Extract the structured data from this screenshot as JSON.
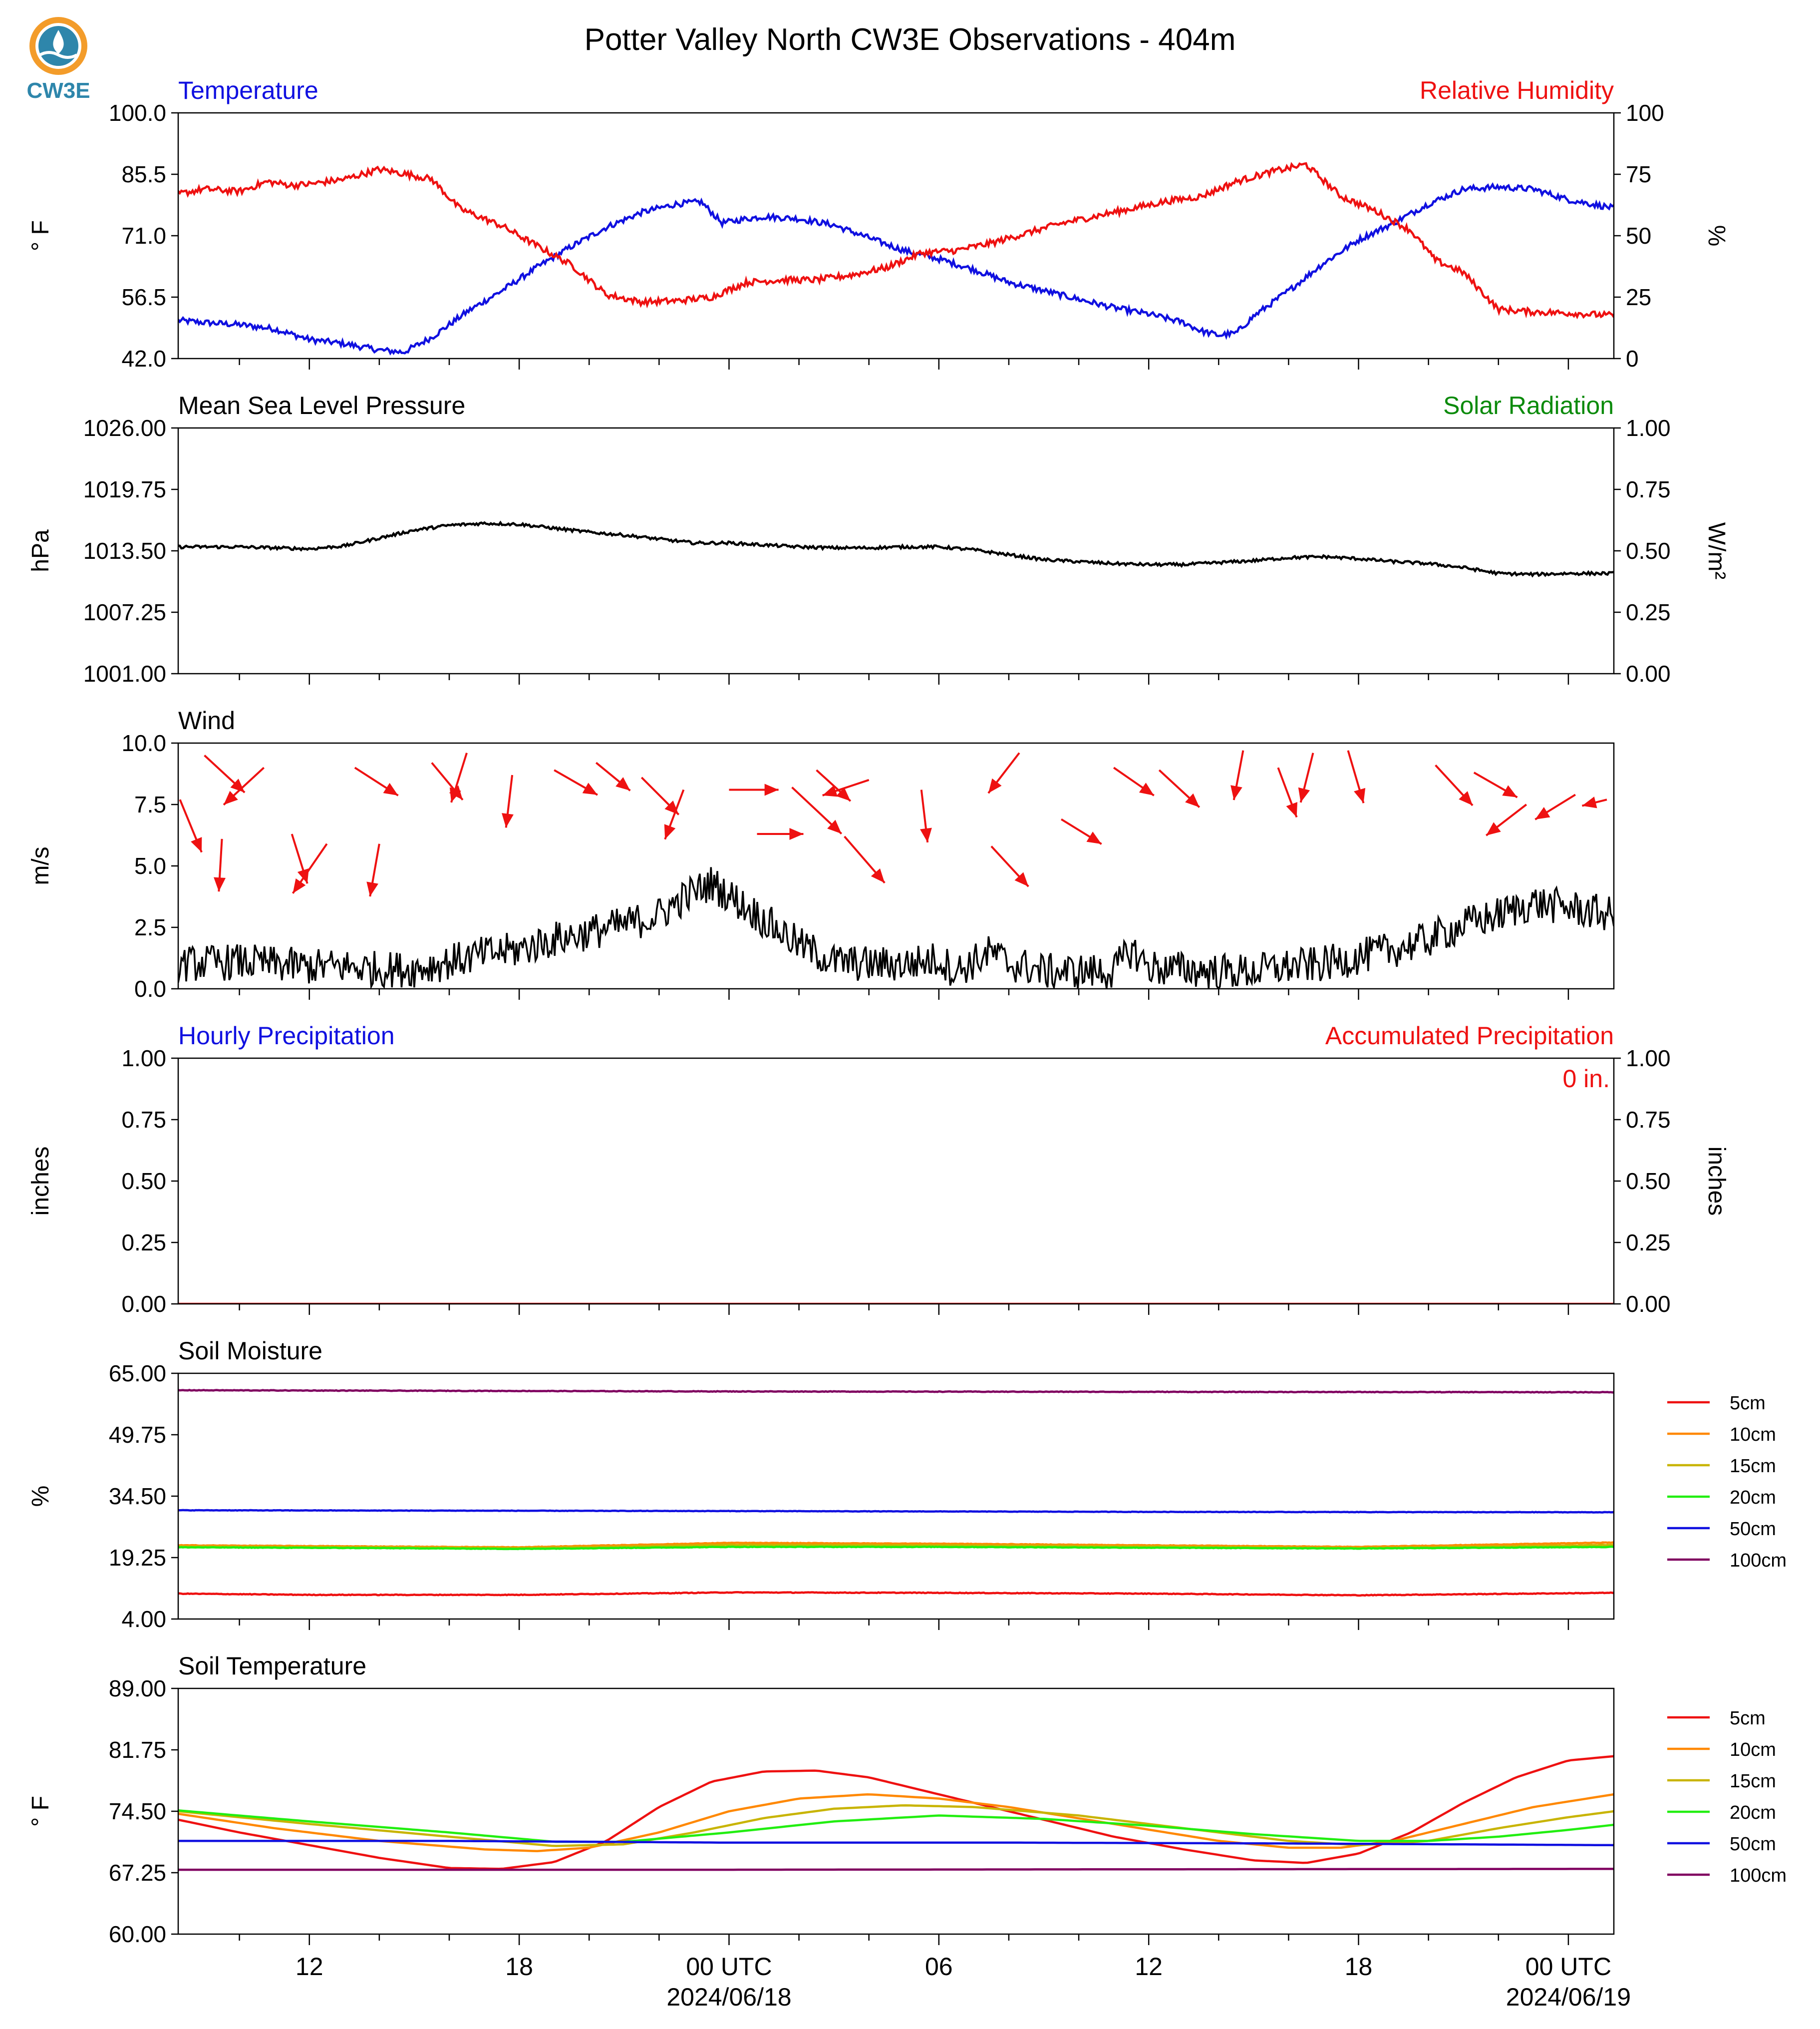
{
  "title": "Potter Valley North CW3E Observations - 404m",
  "logo": {
    "text": "CW3E",
    "color": "#2e86ab",
    "accent": "#f39c2a"
  },
  "colors": {
    "blue": "#1010e0",
    "red": "#ee1111",
    "green": "#0a8a0a",
    "black": "#000000"
  },
  "x_axis": {
    "tick_labels": [
      "12",
      "18",
      "00 UTC",
      "06",
      "12",
      "18",
      "00 UTC"
    ],
    "date_labels": [
      "2024/06/18",
      "2024/06/19"
    ],
    "start_hour": 8.25,
    "end_hour": 49.3,
    "minor_step_hours": 2,
    "major_hours": [
      12,
      18,
      24,
      30,
      36,
      42,
      48
    ],
    "date_hours": [
      24,
      48
    ]
  },
  "chart_data": [
    {
      "type": "line",
      "left_title": "Temperature",
      "right_title": "Relative Humidity",
      "left_ylabel": "° F",
      "right_ylabel": "%",
      "ylim": [
        42.0,
        100.0
      ],
      "yticks": [
        "42.0",
        "56.5",
        "71.0",
        "85.5",
        "100.0"
      ],
      "right_ylim": [
        0,
        100
      ],
      "right_yticks": [
        "0",
        "25",
        "50",
        "75",
        "100"
      ],
      "series": [
        {
          "color": "#1010e0",
          "axis": "left",
          "noise": 0.7,
          "x": [
            8.25,
            9,
            10,
            11,
            12,
            13,
            14,
            14.7,
            15.5,
            16.5,
            17.5,
            18.5,
            19.5,
            20.5,
            21.5,
            22.5,
            23.2,
            23.8,
            24.5,
            25,
            26,
            27,
            28,
            29,
            30,
            31,
            32,
            33,
            34,
            35,
            36,
            36.5,
            37,
            37.5,
            38,
            38.5,
            39,
            40,
            41,
            42,
            43,
            44,
            45,
            46,
            47,
            48,
            49.3
          ],
          "y": [
            51,
            50.5,
            50,
            49,
            46.5,
            45.5,
            44,
            43.5,
            47,
            53,
            58,
            63.5,
            68.5,
            73,
            76.5,
            78.5,
            79,
            74,
            75,
            75.5,
            75,
            73.5,
            70.5,
            67.5,
            65.5,
            63,
            60,
            58,
            56,
            54,
            52.5,
            51.5,
            50.5,
            48.5,
            47.5,
            48,
            52,
            58,
            64.5,
            70,
            74,
            78.5,
            82,
            82.5,
            82,
            79.5,
            77.5
          ]
        },
        {
          "color": "#ee1111",
          "axis": "right",
          "noise": 1.3,
          "x": [
            8.25,
            9,
            10,
            10.8,
            11.5,
            12,
            13,
            14,
            14.8,
            15.5,
            16.3,
            17.5,
            18.5,
            19.5,
            20.5,
            21.5,
            22.5,
            23.5,
            24.5,
            25.5,
            26.5,
            27.5,
            28.5,
            29.5,
            30.5,
            31.5,
            32.5,
            33.5,
            34.5,
            35.5,
            36.5,
            37.5,
            38.5,
            39.5,
            40.5,
            41.5,
            42.5,
            43.5,
            44.2,
            45,
            46,
            47,
            48,
            49.3
          ],
          "y": [
            67,
            69,
            68,
            72,
            70.5,
            71,
            73,
            77,
            75,
            73,
            61,
            54,
            46,
            38,
            26,
            23,
            23.5,
            25,
            31,
            32,
            32,
            34,
            37,
            43,
            44,
            47,
            51,
            55,
            58,
            61,
            64,
            66,
            72,
            76,
            79,
            66,
            60,
            52,
            40,
            35,
            20,
            19,
            18.5,
            17.5
          ]
        }
      ]
    },
    {
      "type": "line",
      "left_title": "Mean Sea Level Pressure",
      "right_title": "Solar Radiation",
      "left_ylabel": "hPa",
      "right_ylabel": "W/m²",
      "ylim": [
        1001.0,
        1026.0
      ],
      "yticks": [
        "1001.00",
        "1007.25",
        "1013.50",
        "1019.75",
        "1026.00"
      ],
      "right_ylim": [
        0,
        1
      ],
      "right_yticks": [
        "0.00",
        "0.25",
        "0.50",
        "0.75",
        "1.00"
      ],
      "series": [
        {
          "color": "#000000",
          "axis": "left",
          "noise": 0.15,
          "x": [
            8.25,
            10,
            12,
            13,
            14,
            15,
            16,
            17,
            18,
            19,
            20,
            21,
            22,
            23,
            24,
            25,
            26,
            27,
            28,
            29,
            30,
            31,
            32,
            33,
            34,
            35,
            36,
            37,
            38,
            39,
            40,
            41,
            42,
            43,
            44,
            45,
            46,
            47,
            48,
            49.3
          ],
          "y": [
            1013.9,
            1013.9,
            1013.7,
            1014,
            1014.8,
            1015.6,
            1016.1,
            1016.3,
            1016.2,
            1015.8,
            1015.4,
            1015.1,
            1014.7,
            1014.3,
            1014.3,
            1014.1,
            1013.9,
            1013.8,
            1013.8,
            1013.9,
            1013.9,
            1013.6,
            1013.1,
            1012.6,
            1012.4,
            1012.2,
            1012.1,
            1012.1,
            1012.3,
            1012.5,
            1012.8,
            1012.9,
            1012.7,
            1012.4,
            1012.2,
            1011.8,
            1011.2,
            1011.1,
            1011.2,
            1011.2
          ]
        }
      ]
    },
    {
      "type": "line",
      "left_title": "Wind",
      "left_ylabel": "m/s",
      "ylim": [
        0,
        10
      ],
      "yticks": [
        "0.0",
        "2.5",
        "5.0",
        "7.5",
        "10.0"
      ],
      "series": [
        {
          "color": "#000000",
          "axis": "left",
          "noise": 0.75,
          "x": [
            8.25,
            10,
            12,
            13,
            14,
            15,
            16,
            17,
            18,
            19,
            20,
            21,
            22,
            22.7,
            23.5,
            24.5,
            25,
            26,
            27,
            28,
            29,
            30,
            30.5,
            31,
            31.5,
            32,
            32.5,
            33,
            34,
            35,
            35.5,
            36,
            36.5,
            37,
            38,
            39,
            40,
            41,
            42,
            43,
            44,
            45,
            46,
            47,
            48,
            49.3
          ],
          "y": [
            1,
            1.1,
            0.9,
            0.9,
            0.8,
            0.8,
            1.1,
            1.4,
            1.6,
            2,
            2.3,
            2.6,
            3,
            3.7,
            4.3,
            3.3,
            2.8,
            1.8,
            1.1,
            1,
            1,
            1.2,
            0.7,
            1.1,
            1.5,
            1,
            0.9,
            0.7,
            0.7,
            0.7,
            1.6,
            0.9,
            0.8,
            0.8,
            0.7,
            0.7,
            0.9,
            1,
            1.3,
            1.6,
            2,
            2.6,
            3,
            3.5,
            3.3,
            3
          ]
        }
      ],
      "wind_arrows": {
        "color": "#ee1111",
        "x": [
          8.3,
          9,
          9.5,
          10.7,
          11.5,
          12.5,
          13.3,
          14,
          15.5,
          16.5,
          17.8,
          19,
          20.2,
          21.5,
          22.7,
          24,
          24.8,
          25.8,
          26.5,
          27.3,
          28,
          29.5,
          31.5,
          32.3,
          33.5,
          35,
          36.3,
          38.7,
          39.7,
          40.7,
          41.7,
          44.2,
          45.3,
          46.8,
          48.2,
          49.1
        ],
        "y": [
          7.7,
          9.5,
          6.1,
          9,
          6.3,
          5.9,
          9,
          5.9,
          9.2,
          9.6,
          8.7,
          8.9,
          9.2,
          8.6,
          8.1,
          8.1,
          6.3,
          8.2,
          8.9,
          6.2,
          8.5,
          8.1,
          5.8,
          9.6,
          6.9,
          9,
          8.9,
          9.7,
          9,
          9.6,
          9.7,
          9.1,
          8.8,
          7.5,
          7.9,
          7.7
        ],
        "u": [
          0.7,
          1.3,
          -0.1,
          -1.3,
          0.5,
          -1.1,
          1.4,
          -0.3,
          1,
          -0.5,
          -0.2,
          1.4,
          1.1,
          1.2,
          -0.6,
          1.6,
          1.5,
          1.6,
          1.1,
          1.3,
          -1.5,
          0.2,
          1.2,
          -1,
          1.3,
          1.3,
          1.3,
          -0.3,
          0.6,
          -0.4,
          0.5,
          1.2,
          1.4,
          -1.3,
          -1.3,
          -0.8
        ],
        "v": [
          -1.7,
          -1.2,
          -1.7,
          -1.2,
          -1.6,
          -1.6,
          -0.9,
          -1.7,
          -1.2,
          -1.6,
          -1.7,
          -0.8,
          -0.9,
          -1.2,
          -1.6,
          0,
          0,
          -1.5,
          -1,
          -1.5,
          -0.5,
          -1.7,
          -1.3,
          -1.3,
          -0.8,
          -0.9,
          -1.2,
          -1.6,
          -1.6,
          -1.6,
          -1.7,
          -1.3,
          -0.8,
          -1,
          -0.8,
          -0.2
        ]
      }
    },
    {
      "type": "line",
      "left_title": "Hourly Precipitation",
      "right_title": "Accumulated Precipitation",
      "left_ylabel": "inches",
      "right_ylabel": "inches",
      "ylim": [
        0,
        1
      ],
      "yticks": [
        "0.00",
        "0.25",
        "0.50",
        "0.75",
        "1.00"
      ],
      "right_ylim": [
        0,
        1
      ],
      "right_yticks": [
        "0.00",
        "0.25",
        "0.50",
        "0.75",
        "1.00"
      ],
      "annotation": "0 in.",
      "series": [
        {
          "color": "#ee1111",
          "axis": "left",
          "noise": 0,
          "x": [
            8.25,
            49.3
          ],
          "y": [
            0,
            0
          ]
        }
      ]
    },
    {
      "type": "line",
      "left_title": "Soil Moisture",
      "left_ylabel": "%",
      "ylim": [
        4.0,
        65.0
      ],
      "yticks": [
        "4.00",
        "19.25",
        "34.50",
        "49.75",
        "65.00"
      ],
      "legend": "right",
      "series": [
        {
          "name": "5cm",
          "color": "#ee1111",
          "noise": 0.08,
          "x": [
            8.25,
            12,
            18,
            24,
            30,
            36,
            42,
            49.3
          ],
          "y": [
            10.3,
            10,
            10,
            10.6,
            10.5,
            10.3,
            9.9,
            10.5
          ]
        },
        {
          "name": "10cm",
          "color": "#ff8800",
          "noise": 0.06,
          "x": [
            8.25,
            14,
            18,
            24,
            30,
            36,
            42,
            49.3
          ],
          "y": [
            22.3,
            22,
            21.8,
            22.9,
            22.7,
            22.3,
            21.9,
            23
          ]
        },
        {
          "name": "15cm",
          "color": "#c8b400",
          "noise": 0.06,
          "x": [
            8.25,
            14,
            18,
            24,
            30,
            36,
            42,
            49.3
          ],
          "y": [
            22,
            21.8,
            21.6,
            22.4,
            22.3,
            22,
            21.6,
            22.4
          ]
        },
        {
          "name": "20cm",
          "color": "#22ee11",
          "noise": 0.06,
          "x": [
            8.25,
            14,
            18,
            24,
            30,
            36,
            42,
            49.3
          ],
          "y": [
            21.8,
            21.6,
            21.4,
            21.9,
            21.9,
            21.7,
            21.5,
            21.9
          ]
        },
        {
          "name": "50cm",
          "color": "#1010e0",
          "noise": 0.05,
          "x": [
            8.25,
            24,
            36,
            49.3
          ],
          "y": [
            31,
            30.8,
            30.6,
            30.5
          ]
        },
        {
          "name": "100cm",
          "color": "#800060",
          "noise": 0.07,
          "x": [
            8.25,
            24,
            36,
            49.3
          ],
          "y": [
            60.8,
            60.5,
            60.4,
            60.3
          ]
        }
      ]
    },
    {
      "type": "line",
      "left_title": "Soil Temperature",
      "left_ylabel": "° F",
      "ylim": [
        60.0,
        89.0
      ],
      "yticks": [
        "60.00",
        "67.25",
        "74.50",
        "81.75",
        "89.00"
      ],
      "legend": "right",
      "series": [
        {
          "name": "5cm",
          "color": "#ee1111",
          "noise": 0,
          "x": [
            8.25,
            10,
            12,
            14,
            16,
            17.5,
            19,
            20.5,
            22,
            23.5,
            25,
            26.5,
            28,
            29.5,
            31,
            33,
            35,
            37,
            39,
            40.5,
            42,
            43.5,
            45,
            46.5,
            48,
            49.3
          ],
          "y": [
            73.5,
            72,
            70.5,
            69,
            67.8,
            67.7,
            68.5,
            71,
            75,
            78,
            79.2,
            79.3,
            78.5,
            77,
            75.5,
            73.5,
            71.5,
            70,
            68.7,
            68.4,
            69.5,
            72,
            75.5,
            78.5,
            80.5,
            81
          ]
        },
        {
          "name": "10cm",
          "color": "#ff8800",
          "noise": 0,
          "x": [
            8.25,
            11,
            14,
            17,
            18.5,
            20,
            22,
            24,
            26,
            28,
            30,
            32,
            35,
            38,
            40,
            41.5,
            43,
            45,
            47,
            49.3
          ],
          "y": [
            74.2,
            72.5,
            71,
            70,
            69.8,
            70.2,
            72,
            74.5,
            76,
            76.5,
            76,
            75,
            73,
            71,
            70.2,
            70.2,
            71,
            73,
            75,
            76.5
          ]
        },
        {
          "name": "15cm",
          "color": "#c8b400",
          "noise": 0,
          "x": [
            8.25,
            12,
            16,
            19,
            21,
            23,
            25,
            27,
            29,
            31,
            34,
            37,
            40,
            42,
            44,
            46,
            48,
            49.3
          ],
          "y": [
            74.5,
            73,
            71.5,
            70.4,
            70.6,
            72,
            73.7,
            74.8,
            75.2,
            75,
            74,
            72.5,
            71,
            70.5,
            71,
            72.5,
            73.8,
            74.5
          ]
        },
        {
          "name": "20cm",
          "color": "#22ee11",
          "noise": 0,
          "x": [
            8.25,
            12,
            16,
            19,
            21,
            24,
            27,
            30,
            33,
            36,
            39,
            42,
            44,
            46,
            48,
            49.3
          ],
          "y": [
            74.6,
            73.3,
            72,
            70.9,
            70.9,
            72,
            73.3,
            74,
            73.6,
            72.8,
            71.8,
            71,
            71,
            71.5,
            72.3,
            72.9
          ]
        },
        {
          "name": "50cm",
          "color": "#1010e0",
          "noise": 0,
          "x": [
            8.25,
            16,
            24,
            32,
            40,
            49.3
          ],
          "y": [
            71,
            71,
            70.8,
            70.8,
            70.7,
            70.5
          ]
        },
        {
          "name": "100cm",
          "color": "#800060",
          "noise": 0,
          "x": [
            8.25,
            24,
            36,
            49.3
          ],
          "y": [
            67.6,
            67.6,
            67.65,
            67.7
          ]
        }
      ]
    }
  ]
}
